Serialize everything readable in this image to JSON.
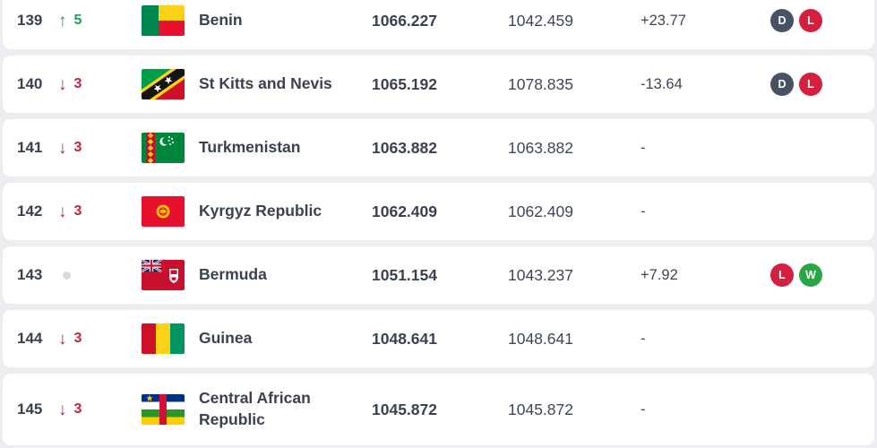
{
  "icons": {
    "up_arrow": "↑",
    "down_arrow": "↓"
  },
  "colors": {
    "page_background": "#ecedf1",
    "row_background": "#ffffff",
    "text_dark": "#3a4150",
    "movement_up_green": "#1ca05c",
    "movement_down_red": "#c22540",
    "badge_draw": "#475264",
    "badge_loss": "#d41f3f",
    "badge_win": "#27a845",
    "no_change_dot": "#d7dade"
  },
  "table": {
    "rows": [
      {
        "rank": "139",
        "movement": {
          "direction": "up",
          "value": "5"
        },
        "flag": "benin",
        "team": "Benin",
        "points": "1066.227",
        "prev_points": "1042.459",
        "change": "+23.77",
        "badges": [
          {
            "label": "D",
            "result": "draw"
          },
          {
            "label": "L",
            "result": "loss"
          }
        ]
      },
      {
        "rank": "140",
        "movement": {
          "direction": "down",
          "value": "3"
        },
        "flag": "stkitts",
        "team": "St Kitts and Nevis",
        "points": "1065.192",
        "prev_points": "1078.835",
        "change": "-13.64",
        "badges": [
          {
            "label": "D",
            "result": "draw"
          },
          {
            "label": "L",
            "result": "loss"
          }
        ]
      },
      {
        "rank": "141",
        "movement": {
          "direction": "down",
          "value": "3"
        },
        "flag": "turkmenistan",
        "team": "Turkmenistan",
        "points": "1063.882",
        "prev_points": "1063.882",
        "change": "-",
        "badges": []
      },
      {
        "rank": "142",
        "movement": {
          "direction": "down",
          "value": "3"
        },
        "flag": "kyrgyz",
        "team": "Kyrgyz Republic",
        "points": "1062.409",
        "prev_points": "1062.409",
        "change": "-",
        "badges": []
      },
      {
        "rank": "143",
        "movement": {
          "direction": "none",
          "value": ""
        },
        "flag": "bermuda",
        "team": "Bermuda",
        "points": "1051.154",
        "prev_points": "1043.237",
        "change": "+7.92",
        "badges": [
          {
            "label": "L",
            "result": "loss"
          },
          {
            "label": "W",
            "result": "win"
          }
        ]
      },
      {
        "rank": "144",
        "movement": {
          "direction": "down",
          "value": "3"
        },
        "flag": "guinea",
        "team": "Guinea",
        "points": "1048.641",
        "prev_points": "1048.641",
        "change": "-",
        "badges": []
      },
      {
        "rank": "145",
        "movement": {
          "direction": "down",
          "value": "3"
        },
        "flag": "car",
        "team": "Central African Republic",
        "points": "1045.872",
        "prev_points": "1045.872",
        "change": "-",
        "badges": []
      }
    ]
  }
}
